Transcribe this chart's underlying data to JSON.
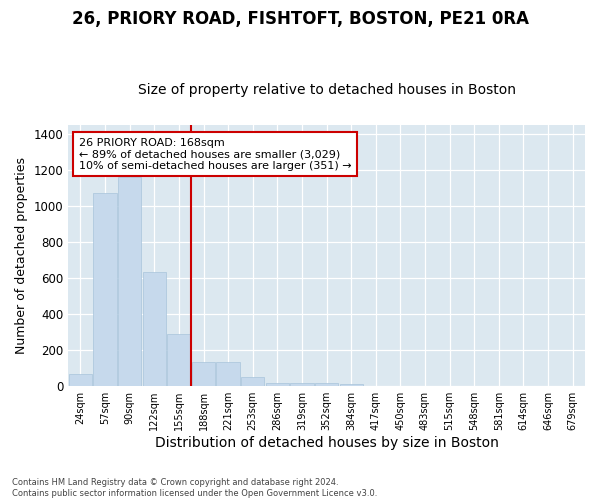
{
  "title1": "26, PRIORY ROAD, FISHTOFT, BOSTON, PE21 0RA",
  "title2": "Size of property relative to detached houses in Boston",
  "xlabel": "Distribution of detached houses by size in Boston",
  "ylabel": "Number of detached properties",
  "categories": [
    "24sqm",
    "57sqm",
    "90sqm",
    "122sqm",
    "155sqm",
    "188sqm",
    "221sqm",
    "253sqm",
    "286sqm",
    "319sqm",
    "352sqm",
    "384sqm",
    "417sqm",
    "450sqm",
    "483sqm",
    "515sqm",
    "548sqm",
    "581sqm",
    "614sqm",
    "646sqm",
    "679sqm"
  ],
  "values": [
    65,
    1070,
    1160,
    635,
    290,
    135,
    135,
    50,
    20,
    20,
    20,
    15,
    0,
    0,
    0,
    0,
    0,
    0,
    0,
    0,
    0
  ],
  "bar_color": "#c6d9ec",
  "bar_edge_color": "#a8c4db",
  "vline_color": "#cc0000",
  "annotation_line1": "26 PRIORY ROAD: 168sqm",
  "annotation_line2": "← 89% of detached houses are smaller (3,029)",
  "annotation_line3": "10% of semi-detached houses are larger (351) →",
  "annotation_box_color": "#cc0000",
  "ylim": [
    0,
    1450
  ],
  "yticks": [
    0,
    200,
    400,
    600,
    800,
    1000,
    1200,
    1400
  ],
  "plot_bg_color": "#dce8f0",
  "fig_bg_color": "#ffffff",
  "grid_color": "#ffffff",
  "footer": "Contains HM Land Registry data © Crown copyright and database right 2024.\nContains public sector information licensed under the Open Government Licence v3.0.",
  "title1_fontsize": 12,
  "title2_fontsize": 10,
  "xlabel_fontsize": 10,
  "ylabel_fontsize": 9,
  "vline_bar_index": 4.5
}
